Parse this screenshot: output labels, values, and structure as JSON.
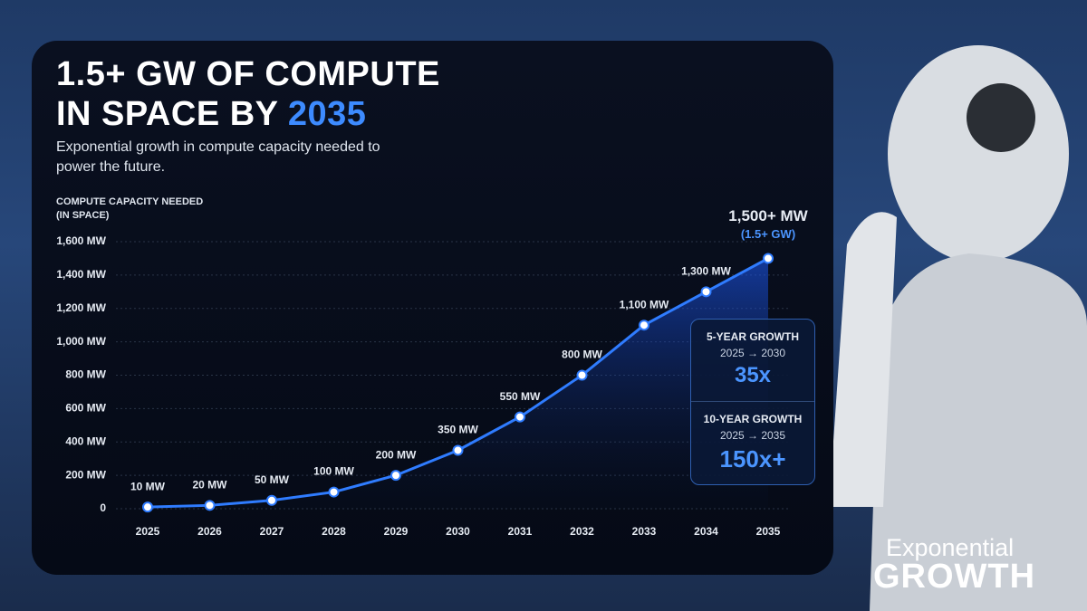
{
  "chart_data": {
    "type": "line",
    "title_line1": "1.5+ GW OF COMPUTE",
    "title_line2": "IN SPACE BY",
    "title_highlight": "2035",
    "subtitle": "Exponential growth in compute capacity needed to power the future.",
    "y_axis_label": "COMPUTE CAPACITY NEEDED (IN SPACE)",
    "categories": [
      "2025",
      "2026",
      "2027",
      "2028",
      "2029",
      "2030",
      "2031",
      "2032",
      "2033",
      "2034",
      "2035"
    ],
    "series": [
      {
        "color": "#2f7cff",
        "values": [
          10,
          20,
          50,
          100,
          200,
          350,
          550,
          800,
          1100,
          1300,
          1500
        ],
        "value_labels": [
          "10 MW",
          "20 MW",
          "50 MW",
          "100 MW",
          "200 MW",
          "350 MW",
          "550 MW",
          "800 MW",
          "1,100 MW",
          "1,300 MW",
          "1,500+ MW"
        ]
      }
    ],
    "last_point_note": "(1.5+ GW)",
    "ylim": [
      0,
      1600
    ],
    "yticks": [
      0,
      {
        "value": 200,
        "label": "200 MW"
      },
      {
        "value": 400,
        "label": "400 MW"
      },
      {
        "value": 600,
        "label": "600 MW"
      },
      {
        "value": 800,
        "label": "800 MW"
      },
      {
        "value": 1000,
        "label": "1,000 MW"
      },
      {
        "value": 1200,
        "label": "1,200 MW"
      },
      {
        "value": 1400,
        "label": "1,400 MW"
      },
      {
        "value": 1600,
        "label": "1,600 MW"
      }
    ],
    "grid": true,
    "callouts": [
      {
        "title": "5-YEAR GROWTH",
        "range": "2025 → 2030",
        "value": "35x"
      },
      {
        "title": "10-YEAR GROWTH",
        "range": "2025 → 2035",
        "value": "150x+"
      }
    ],
    "brand_line1": "Exponential",
    "brand_line2": "GROWTH"
  }
}
